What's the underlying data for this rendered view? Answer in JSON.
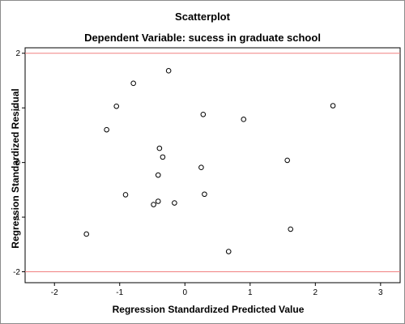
{
  "chart_data": {
    "type": "scatter",
    "title": "Scatterplot",
    "subtitle": "Dependent Variable: sucess in graduate school",
    "xlabel": "Regression Standardized Predicted Value",
    "ylabel": "Regression Standardized Residual",
    "xlim": [
      -2.45,
      3.3
    ],
    "ylim": [
      -2.2,
      2.1
    ],
    "xticks": [
      -2,
      -1,
      0,
      1,
      2,
      3
    ],
    "yticks": [
      -2,
      -1,
      0,
      1,
      2
    ],
    "reference_lines": [
      {
        "axis": "y",
        "value": 2,
        "color": "#f08080"
      },
      {
        "axis": "y",
        "value": -2,
        "color": "#f08080"
      }
    ],
    "grid": false,
    "legend": "none",
    "points": [
      {
        "x": -0.79,
        "y": 1.45
      },
      {
        "x": -0.25,
        "y": 1.68
      },
      {
        "x": -1.05,
        "y": 1.03
      },
      {
        "x": -1.2,
        "y": 0.6
      },
      {
        "x": 0.28,
        "y": 0.88
      },
      {
        "x": 0.9,
        "y": 0.79
      },
      {
        "x": 2.27,
        "y": 1.04
      },
      {
        "x": -0.39,
        "y": 0.26
      },
      {
        "x": -0.34,
        "y": 0.1
      },
      {
        "x": 0.25,
        "y": -0.09
      },
      {
        "x": 1.57,
        "y": 0.04
      },
      {
        "x": -0.41,
        "y": -0.23
      },
      {
        "x": -0.91,
        "y": -0.59
      },
      {
        "x": 0.3,
        "y": -0.58
      },
      {
        "x": -0.41,
        "y": -0.71
      },
      {
        "x": -0.48,
        "y": -0.77
      },
      {
        "x": -0.16,
        "y": -0.74
      },
      {
        "x": -1.51,
        "y": -1.31
      },
      {
        "x": 1.62,
        "y": -1.22
      },
      {
        "x": 0.67,
        "y": -1.63
      }
    ]
  }
}
